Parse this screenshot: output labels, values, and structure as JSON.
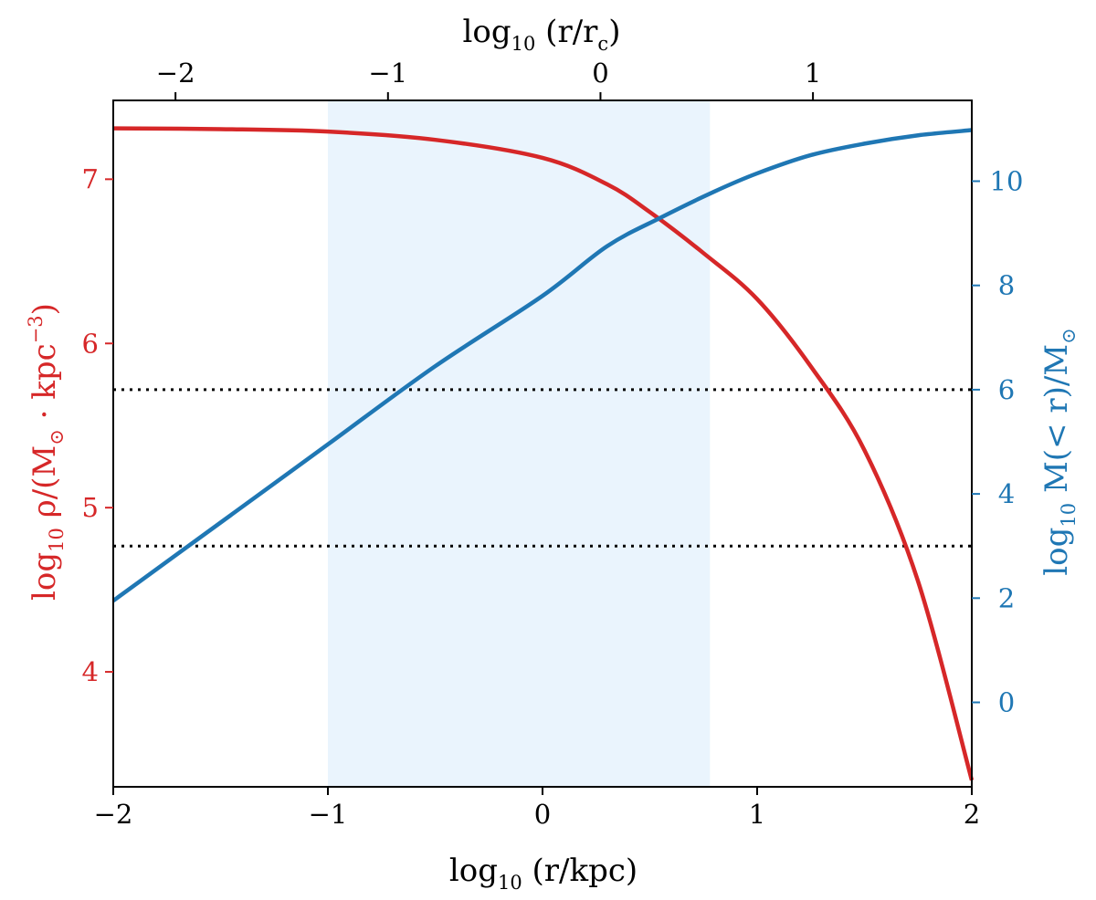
{
  "chart_data": {
    "type": "line",
    "x_axis": {
      "label_main": "log",
      "label_sub": "10",
      "label_rest": " (r/kpc)",
      "range": [
        -2,
        2
      ],
      "ticks": [
        -2,
        -1,
        0,
        1,
        2
      ],
      "tick_labels": [
        "−2",
        "−1",
        "0",
        "1",
        "2"
      ]
    },
    "top_axis": {
      "label_main": "log",
      "label_sub": "10",
      "label_rest": " (r/r",
      "label_sub2": "c",
      "label_end": ")",
      "ticks_at_x": [
        -1.71,
        -0.72,
        0.27,
        1.26
      ],
      "tick_labels": [
        "−2",
        "−1",
        "0",
        "1"
      ]
    },
    "left_axis": {
      "label_main": "log",
      "label_sub": "10",
      "label_rest": " ρ/(M",
      "label_sub2": "⊙",
      "label_end": " · kpc",
      "label_sup": "−3",
      "label_close": ")",
      "color": "#d62728",
      "range": [
        3.3,
        7.48
      ],
      "ticks": [
        4,
        5,
        6,
        7
      ],
      "tick_labels": [
        "4",
        "5",
        "6",
        "7"
      ]
    },
    "right_axis": {
      "label_main": "log",
      "label_sub": "10",
      "label_rest": " M(< r)/M",
      "label_sub2": "⊙",
      "color": "#1f77b4",
      "range": [
        -1.62,
        11.55
      ],
      "ticks": [
        0,
        2,
        4,
        6,
        8,
        10
      ],
      "tick_labels": [
        "0",
        "2",
        "4",
        "6",
        "8",
        "10"
      ]
    },
    "shaded_region": {
      "x_range": [
        -1.0,
        0.78
      ],
      "color": "#eaf4fd"
    },
    "hlines_right_axis": [
      6,
      3
    ],
    "series": [
      {
        "axis": "left",
        "color": "#d62728",
        "points": [
          [
            -2.0,
            7.31
          ],
          [
            -1.5,
            7.305
          ],
          [
            -1.0,
            7.29
          ],
          [
            -0.5,
            7.24
          ],
          [
            0.0,
            7.13
          ],
          [
            0.3,
            6.97
          ],
          [
            0.5,
            6.8
          ],
          [
            0.75,
            6.55
          ],
          [
            1.0,
            6.27
          ],
          [
            1.25,
            5.86
          ],
          [
            1.5,
            5.35
          ],
          [
            1.75,
            4.55
          ],
          [
            2.0,
            3.34
          ]
        ]
      },
      {
        "axis": "right",
        "color": "#1f77b4",
        "points": [
          [
            -2.0,
            1.95
          ],
          [
            -1.5,
            3.45
          ],
          [
            -1.0,
            4.95
          ],
          [
            -0.5,
            6.45
          ],
          [
            0.0,
            7.8
          ],
          [
            0.3,
            8.75
          ],
          [
            0.55,
            9.3
          ],
          [
            0.8,
            9.8
          ],
          [
            1.0,
            10.15
          ],
          [
            1.25,
            10.5
          ],
          [
            1.5,
            10.72
          ],
          [
            1.75,
            10.88
          ],
          [
            2.0,
            10.98
          ]
        ]
      }
    ]
  }
}
